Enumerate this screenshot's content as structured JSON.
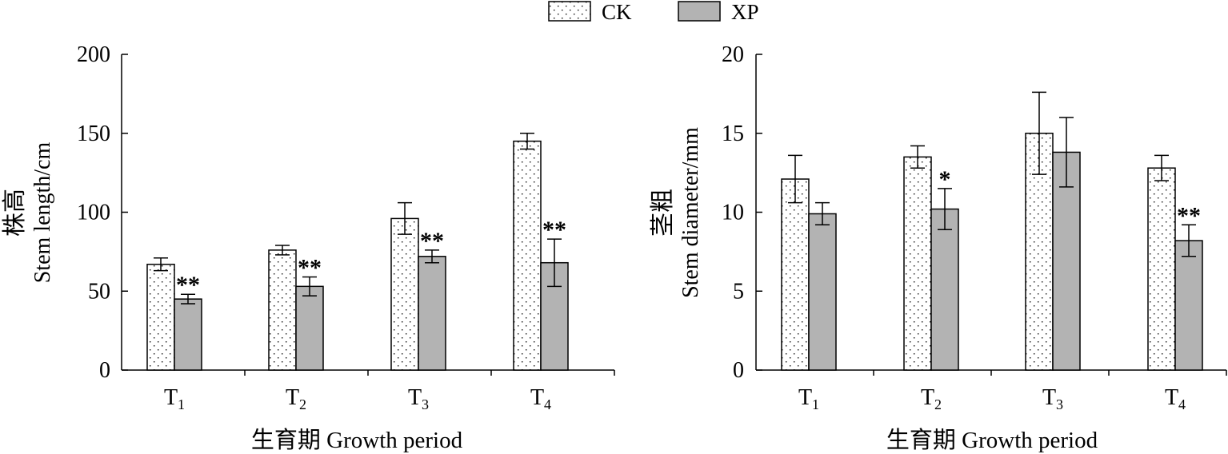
{
  "legend": {
    "items": [
      {
        "label": "CK",
        "pattern": "dotted"
      },
      {
        "label": "XP",
        "pattern": "solid-gray"
      }
    ]
  },
  "colors": {
    "xp_fill": "#b3b3b3",
    "ck_fill": "#ffffff",
    "ink": "#000000"
  },
  "chart_data": [
    {
      "type": "bar",
      "title": "",
      "ylabel_cn": "株高",
      "ylabel_en": "Stem length/cm",
      "xlabel": "生育期 Growth period",
      "ylim": [
        0,
        200
      ],
      "yticks": [
        0,
        50,
        100,
        150,
        200
      ],
      "categories": [
        {
          "main": "T",
          "sub": "1"
        },
        {
          "main": "T",
          "sub": "2"
        },
        {
          "main": "T",
          "sub": "3"
        },
        {
          "main": "T",
          "sub": "4"
        }
      ],
      "series": [
        {
          "name": "CK",
          "values": [
            67,
            76,
            96,
            145
          ],
          "errors": [
            4,
            3,
            10,
            5
          ]
        },
        {
          "name": "XP",
          "values": [
            45,
            53,
            72,
            68
          ],
          "errors": [
            3,
            6,
            4,
            15
          ]
        }
      ],
      "annotations": [
        {
          "category": 0,
          "series": "XP",
          "text": "**"
        },
        {
          "category": 1,
          "series": "XP",
          "text": "**"
        },
        {
          "category": 2,
          "series": "XP",
          "text": "**"
        },
        {
          "category": 3,
          "series": "XP",
          "text": "**"
        }
      ]
    },
    {
      "type": "bar",
      "title": "",
      "ylabel_cn": "茎粗",
      "ylabel_en": "Stem diameter/mm",
      "xlabel": "生育期 Growth period",
      "ylim": [
        0,
        20
      ],
      "yticks": [
        0,
        5,
        10,
        15,
        20
      ],
      "categories": [
        {
          "main": "T",
          "sub": "1"
        },
        {
          "main": "T",
          "sub": "2"
        },
        {
          "main": "T",
          "sub": "3"
        },
        {
          "main": "T",
          "sub": "4"
        }
      ],
      "series": [
        {
          "name": "CK",
          "values": [
            12.1,
            13.5,
            15.0,
            12.8
          ],
          "errors": [
            1.5,
            0.7,
            2.6,
            0.8
          ]
        },
        {
          "name": "XP",
          "values": [
            9.9,
            10.2,
            13.8,
            8.2
          ],
          "errors": [
            0.7,
            1.3,
            2.2,
            1.0
          ]
        }
      ],
      "annotations": [
        {
          "category": 1,
          "series": "XP",
          "text": "*"
        },
        {
          "category": 3,
          "series": "XP",
          "text": "**"
        }
      ]
    }
  ]
}
